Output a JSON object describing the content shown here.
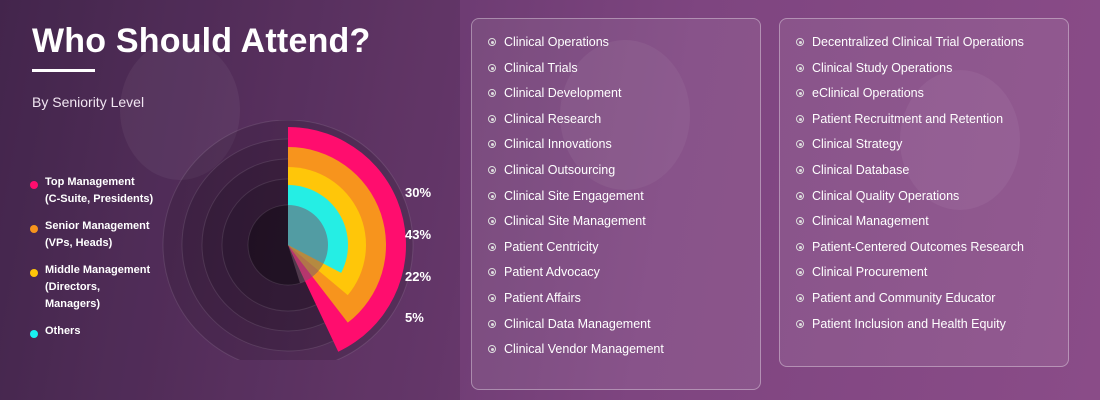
{
  "header": {
    "title": "Who Should Attend?",
    "subtitle": "By Seniority Level"
  },
  "chart_data": {
    "type": "pie",
    "categories": [
      "Top Management (C-Suite, Presidents)",
      "Senior Management (VPs, Heads)",
      "Middle Management (Directors, Managers)",
      "Others"
    ],
    "values": [
      30,
      43,
      22,
      5
    ],
    "value_labels": [
      "30%",
      "43%",
      "22%",
      "5%"
    ],
    "colors": [
      "#ff0d6e",
      "#f7941d",
      "#ffc609",
      "#19f0f0"
    ]
  },
  "legend": {
    "items": [
      {
        "line1": "Top Management",
        "line2": "(C-Suite, Presidents)",
        "line3": "",
        "color": "#ff0d6e"
      },
      {
        "line1": "Senior Management",
        "line2": "(VPs, Heads)",
        "line3": "",
        "color": "#f7941d"
      },
      {
        "line1": "Middle Management",
        "line2": "(Directors,",
        "line3": "Managers)",
        "color": "#ffc609"
      },
      {
        "line1": "Others",
        "line2": "",
        "line3": "",
        "color": "#19f0f0"
      }
    ]
  },
  "roles_left": {
    "items": [
      "Clinical Operations",
      "Clinical Trials",
      "Clinical Development",
      "Clinical Research",
      "Clinical Innovations",
      "Clinical Outsourcing",
      "Clinical Site Engagement",
      "Clinical Site Management",
      "Patient Centricity",
      "Patient Advocacy",
      "Patient Affairs",
      "Clinical Data Management",
      "Clinical Vendor Management"
    ]
  },
  "roles_right": {
    "items": [
      "Decentralized Clinical Trial Operations",
      "Clinical Study Operations",
      "eClinical Operations",
      "Patient Recruitment and Retention",
      "Clinical Strategy",
      "Clinical Database",
      "Clinical Quality Operations",
      "Clinical Management",
      "Patient-Centered Outcomes Research",
      "Clinical Procurement",
      "Patient and Community Educator",
      "Patient Inclusion and Health Equity"
    ]
  }
}
